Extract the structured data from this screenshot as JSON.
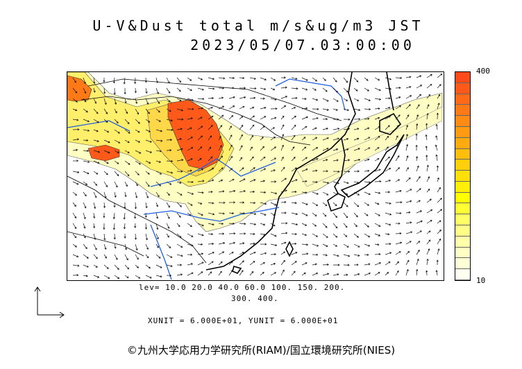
{
  "title": {
    "line1": "U-V&Dust total m/s&ug/m3 JST",
    "line2": "2023/05/07.03:00:00"
  },
  "colorbar": {
    "max_label": "400",
    "min_label": "10",
    "colors": [
      "#ff4a1c",
      "#ff5a1a",
      "#ff6a18",
      "#ff7a16",
      "#ff8a14",
      "#ff9a12",
      "#ffab10",
      "#ffbd0e",
      "#ffcf0c",
      "#ffdf0a",
      "#ffee08",
      "#ffff00",
      "#ffff33",
      "#ffff66",
      "#ffff88",
      "#ffffaa",
      "#ffffc4",
      "#ffffd6",
      "#fffff0"
    ]
  },
  "levels": {
    "line1": "lev= 10.0 20.0 40.0 60.0 100. 150. 200.",
    "line2": "300. 400."
  },
  "units": "XUNIT = 6.000E+01, YUNIT = 6.000E+01",
  "copyright": "©九州大学応用力学研究所(RIAM)/国立環境研究所(NIES)",
  "colors": {
    "coast": "#000000",
    "river": "#1f5fe0",
    "border": "#000000",
    "dust_low": "#ffffc0",
    "dust_mid": "#ffee55",
    "dust_high": "#ff5a1a"
  }
}
